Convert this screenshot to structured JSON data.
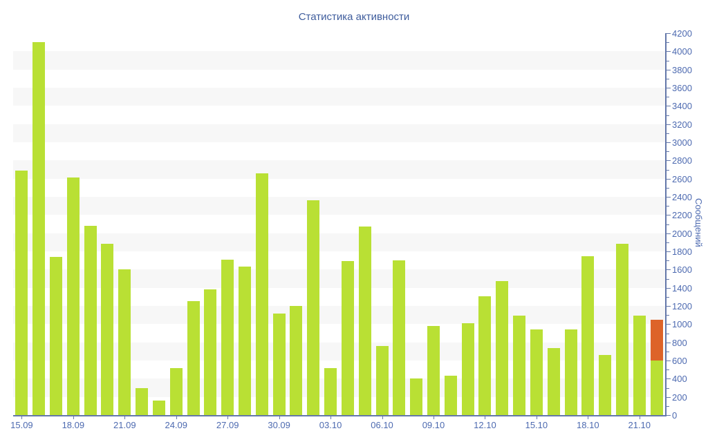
{
  "title": "Статистика активности",
  "chart_data": {
    "type": "bar",
    "title": "Статистика активности",
    "ylabel": "Сообщений",
    "xlabel": "",
    "ylim": [
      0,
      4200
    ],
    "y_tick_step": 200,
    "y_minor_tick_step": 100,
    "y_tick_labels": [
      "0",
      "200",
      "400",
      "600",
      "800",
      "1000",
      "1200",
      "1400",
      "1600",
      "1800",
      "2000",
      "2200",
      "2400",
      "2600",
      "2800",
      "3000",
      "3200",
      "3400",
      "3600",
      "3800",
      "4000",
      "4200"
    ],
    "grid": "striped-horizontal-bands",
    "legend": "none",
    "y_axis_side": "right",
    "categories": [
      "15.09",
      "16.09",
      "17.09",
      "18.09",
      "19.09",
      "20.09",
      "21.09",
      "22.09",
      "23.09",
      "24.09",
      "25.09",
      "26.09",
      "27.09",
      "28.09",
      "29.09",
      "30.09",
      "01.10",
      "02.10",
      "03.10",
      "04.10",
      "05.10",
      "06.10",
      "07.10",
      "08.10",
      "09.10",
      "10.10",
      "11.10",
      "12.10",
      "13.10",
      "14.10",
      "15.10",
      "16.10",
      "17.10",
      "18.10",
      "19.10",
      "20.10",
      "21.10",
      "22.10"
    ],
    "x_tick_labels": [
      "15.09",
      "18.09",
      "21.09",
      "24.09",
      "27.09",
      "30.09",
      "03.10",
      "06.10",
      "09.10",
      "12.10",
      "15.10",
      "18.10",
      "21.10"
    ],
    "x_tick_every": 3,
    "stacked": true,
    "series": [
      {
        "name": "messages",
        "color": "#b9e034",
        "values": [
          2690,
          4100,
          1740,
          2610,
          2080,
          1880,
          1600,
          300,
          160,
          520,
          1250,
          1380,
          1710,
          1630,
          2660,
          1120,
          1200,
          2360,
          520,
          1690,
          2070,
          760,
          1700,
          400,
          980,
          430,
          1010,
          1310,
          1470,
          1090,
          940,
          740,
          940,
          1750,
          660,
          1880,
          1090,
          600
        ]
      },
      {
        "name": "messages-current-day-highlight",
        "color": "#dd6329",
        "values": [
          0,
          0,
          0,
          0,
          0,
          0,
          0,
          0,
          0,
          0,
          0,
          0,
          0,
          0,
          0,
          0,
          0,
          0,
          0,
          0,
          0,
          0,
          0,
          0,
          0,
          0,
          0,
          0,
          0,
          0,
          0,
          0,
          0,
          0,
          0,
          0,
          0,
          450
        ]
      }
    ],
    "colors": {
      "bar_green": "#b9e034",
      "bar_orange": "#dd6329",
      "axis": "#6377a9",
      "tick_label": "#4d6ab0",
      "title": "#3e5c9c",
      "stripe": "#f7f7f7",
      "background": "#ffffff"
    }
  }
}
